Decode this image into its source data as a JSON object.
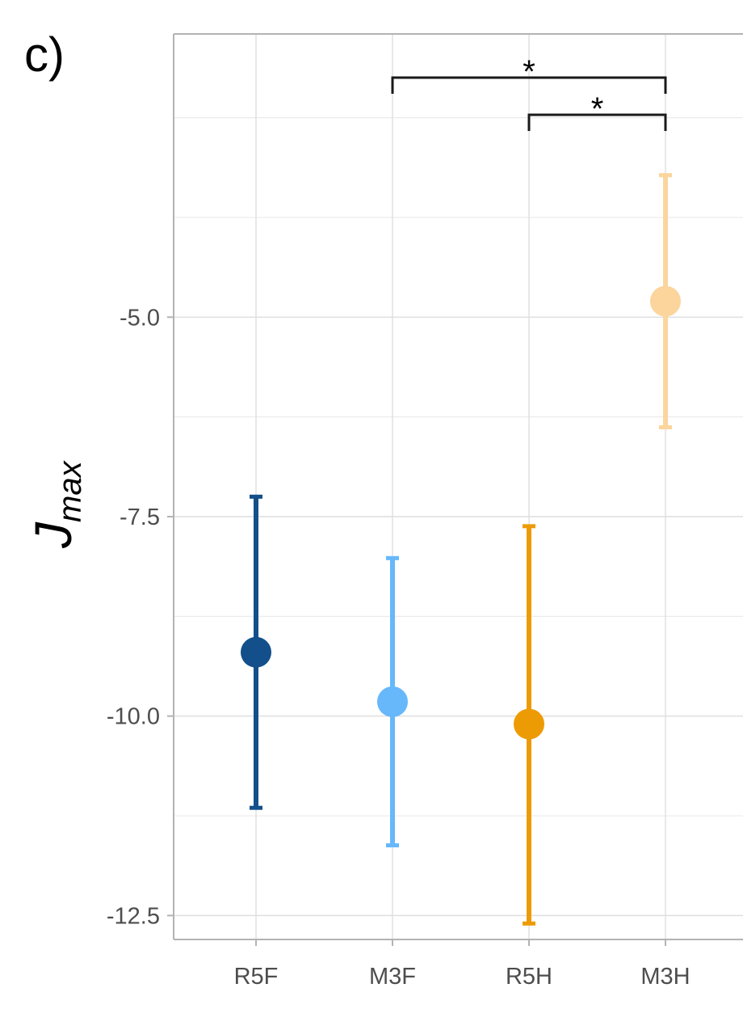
{
  "panel_label": "c)",
  "chart_data": {
    "type": "scatter",
    "title": "",
    "xlabel": "",
    "ylabel_main": "J",
    "ylabel_sub": "max",
    "categories": [
      "R5F",
      "M3F",
      "R5H",
      "M3H"
    ],
    "points": [
      {
        "category": "R5F",
        "mean": -9.2,
        "lower": -11.15,
        "upper": -7.25,
        "color": "#134f8a"
      },
      {
        "category": "M3F",
        "mean": -9.82,
        "lower": -11.62,
        "upper": -8.02,
        "color": "#66b8fa"
      },
      {
        "category": "R5H",
        "mean": -10.1,
        "lower": -12.6,
        "upper": -7.62,
        "color": "#ed9b05"
      },
      {
        "category": "M3H",
        "mean": -4.8,
        "lower": -6.38,
        "upper": -3.22,
        "color": "#fbd59c"
      }
    ],
    "ylim": [
      -12.8,
      -1.45
    ],
    "yticks": [
      -5.0,
      -7.5,
      -10.0,
      -12.5
    ],
    "ytick_labels": [
      "-5.0",
      "-7.5",
      "-10.0",
      "-12.5"
    ],
    "grid": true,
    "significance": [
      {
        "from": "M3F",
        "to": "M3H",
        "label": "*",
        "level": 1
      },
      {
        "from": "R5H",
        "to": "M3H",
        "label": "*",
        "level": 0
      }
    ]
  }
}
